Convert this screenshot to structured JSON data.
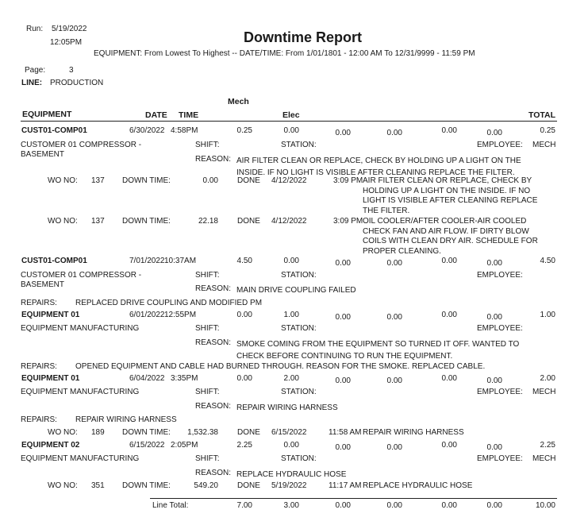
{
  "header": {
    "run_label": "Run:",
    "run_date": "5/19/2022",
    "run_time": "12:05PM",
    "title": "Downtime Report",
    "filter": "EQUIPMENT:  From Lowest To Highest -- DATE/TIME:  From  1/01/1801 - 12:00 AM To 12/31/9999 - 11:59 PM",
    "page_label": "Page:",
    "page_number": "3",
    "line_label": "LINE:",
    "line_value": "PRODUCTION"
  },
  "columns": {
    "equipment": "EQUIPMENT",
    "date": "DATE",
    "time": "TIME",
    "mech": "Mech",
    "elec": "Elec",
    "total": "TOTAL"
  },
  "labels": {
    "shift": "SHIFT:",
    "station": "STATION:",
    "employee": "EMPLOYEE:",
    "reason": "REASON:",
    "repairs": "REPAIRS:",
    "wo_no": "WO NO:",
    "down_time": "DOWN TIME:",
    "done": "DONE",
    "line_total": "Line Total:"
  },
  "records": [
    {
      "equipment": "CUST01-COMP01",
      "date": "6/30/2022",
      "time": "4:58PM",
      "values": [
        "0.25",
        "0.00",
        "0.00",
        "0.00",
        "0.00",
        "0.00",
        "0.25"
      ],
      "desc": "CUSTOMER 01 COMPRESSOR -\nBASEMENT",
      "employee": "MECH",
      "reason": "AIR FILTER CLEAN OR REPLACE, CHECK BY HOLDING UP A LIGHT ON THE\nINSIDE. IF NO LIGHT IS VISIBLE AFTER CLEANING REPLACE THE FILTER.",
      "work_orders": [
        {
          "wo": "137",
          "down_time": "0.00",
          "done_date": "4/12/2022",
          "done_time": "3:09 PM",
          "desc": "AIR FILTER CLEAN OR REPLACE, CHECK BY\nHOLDING UP A LIGHT ON THE INSIDE. IF NO\nLIGHT IS VISIBLE AFTER CLEANING REPLACE\nTHE FILTER."
        },
        {
          "wo": "137",
          "down_time": "22.18",
          "done_date": "4/12/2022",
          "done_time": "3:09 PM",
          "desc": "OIL COOLER/AFTER COOLER-AIR COOLED\nCHECK FAN AND AIR FLOW. IF DIRTY BLOW\nCOILS WITH CLEAN DRY AIR. SCHEDULE FOR\nPROPER CLEANING."
        }
      ]
    },
    {
      "equipment": "CUST01-COMP01",
      "date": "7/01/2022",
      "time": "10:37AM",
      "values": [
        "4.50",
        "0.00",
        "0.00",
        "0.00",
        "0.00",
        "0.00",
        "4.50"
      ],
      "desc": "CUSTOMER 01 COMPRESSOR -\nBASEMENT",
      "employee": "",
      "reason": "MAIN DRIVE COUPLING FAILED",
      "repairs": "REPLACED DRIVE COUPLING AND MODIFIED PM"
    },
    {
      "equipment": "EQUIPMENT 01",
      "date": "6/01/2022",
      "time": "12:55PM",
      "values": [
        "0.00",
        "1.00",
        "0.00",
        "0.00",
        "0.00",
        "0.00",
        "1.00"
      ],
      "desc": "EQUIPMENT MANUFACTURING",
      "employee": "",
      "reason": "SMOKE COMING FROM THE EQUIPMENT SO TURNED IT OFF. WANTED TO\nCHECK BEFORE CONTINUING TO RUN THE EQUIPMENT.",
      "repairs": "OPENED EQUIPMENT AND CABLE HAD BURNED THROUGH. REASON FOR THE SMOKE. REPLACED CABLE."
    },
    {
      "equipment": "EQUIPMENT 01",
      "date": "6/04/2022",
      "time": "3:35PM",
      "values": [
        "0.00",
        "2.00",
        "0.00",
        "0.00",
        "0.00",
        "0.00",
        "2.00"
      ],
      "desc": "EQUIPMENT MANUFACTURING",
      "employee": "MECH",
      "reason": "REPAIR WIRING HARNESS",
      "repairs": "REPAIR WIRING HARNESS",
      "work_orders": [
        {
          "wo": "189",
          "down_time": "1,532.38",
          "done_date": "6/15/2022",
          "done_time": "11:58 AM",
          "desc": "REPAIR WIRING HARNESS"
        }
      ]
    },
    {
      "equipment": "EQUIPMENT 02",
      "date": "6/15/2022",
      "time": "2:05PM",
      "values": [
        "2.25",
        "0.00",
        "0.00",
        "0.00",
        "0.00",
        "0.00",
        "2.25"
      ],
      "desc": "EQUIPMENT MANUFACTURING",
      "employee": "MECH",
      "reason": "REPLACE HYDRAULIC HOSE",
      "work_orders": [
        {
          "wo": "351",
          "down_time": "549.20",
          "done_date": "5/19/2022",
          "done_time": "11:17 AM",
          "desc": "REPLACE HYDRAULIC HOSE"
        }
      ]
    }
  ],
  "line_total": [
    "7.00",
    "3.00",
    "0.00",
    "0.00",
    "0.00",
    "0.00",
    "10.00"
  ]
}
